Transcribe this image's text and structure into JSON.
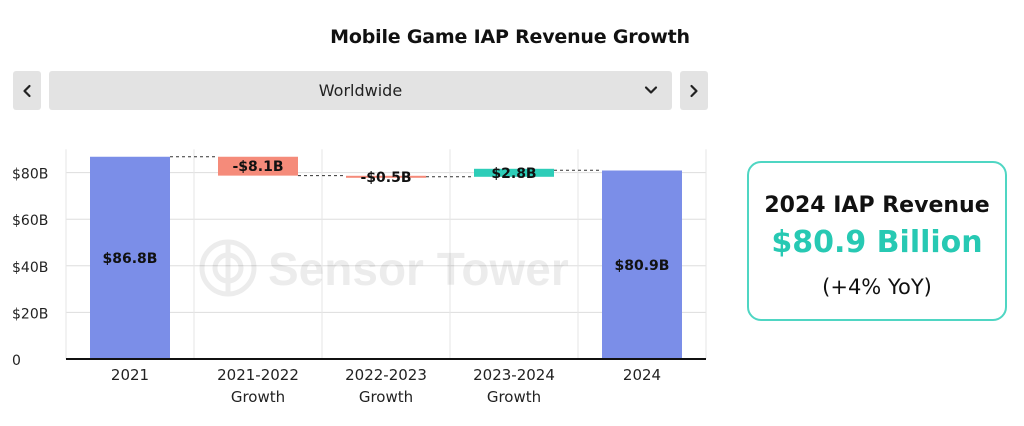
{
  "title": "Mobile Game IAP Revenue Growth",
  "region_selector": {
    "selected": "Worldwide"
  },
  "watermark": "Sensor Tower",
  "kpi_card": {
    "label": "2024 IAP Revenue",
    "value": "$80.9 Billion",
    "change": "(+4% YoY)"
  },
  "colors": {
    "total_bar": "#7b8ee8",
    "decrease_bar": "#f58b7a",
    "increase_bar": "#2dcdb8",
    "card_border": "#4fd6c3",
    "kpi_value": "#27c9b3"
  },
  "icons": {
    "prev": "chevron-left-icon",
    "next": "chevron-right-icon",
    "dropdown": "chevron-down-icon"
  },
  "chart_data": {
    "type": "bar",
    "subtype": "waterfall",
    "categories": [
      [
        "2021"
      ],
      [
        "2021-2022",
        "Growth"
      ],
      [
        "2022-2023",
        "Growth"
      ],
      [
        "2023-2024",
        "Growth"
      ],
      [
        "2024"
      ]
    ],
    "values": [
      86.8,
      -8.1,
      -0.5,
      2.8,
      80.9
    ],
    "kinds": [
      "total",
      "delta",
      "delta",
      "delta",
      "total"
    ],
    "data_labels": [
      "$86.8B",
      "-$8.1B",
      "-$0.5B",
      "$2.8B",
      "$80.9B"
    ],
    "yticks": [
      0,
      20,
      40,
      60,
      80
    ],
    "ytick_labels": [
      "0",
      "$20B",
      "$40B",
      "$60B",
      "$80B"
    ],
    "ylim": [
      0,
      90
    ],
    "grid": true,
    "connectors": true
  }
}
